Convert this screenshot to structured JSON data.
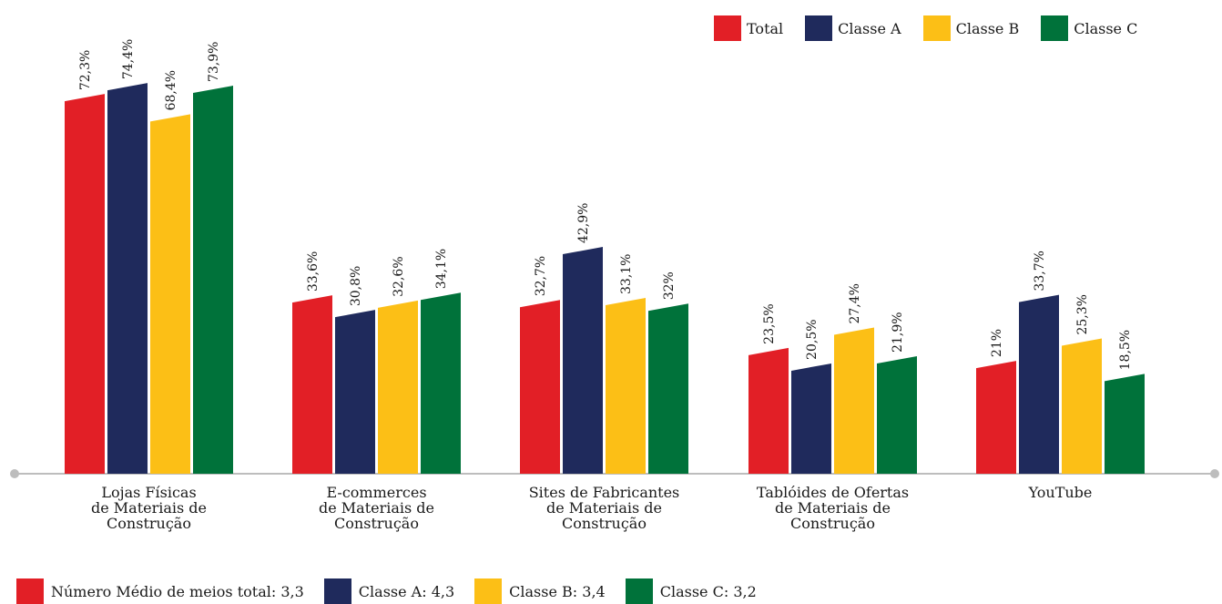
{
  "chart_data": {
    "type": "bar",
    "categories": [
      [
        "Lojas Físicas",
        "de Materiais de",
        "Construção"
      ],
      [
        "E-commerces",
        "de Materiais de",
        "Construção"
      ],
      [
        "Sites de Fabricantes",
        "de Materiais de",
        "Construção"
      ],
      [
        "Tablóides de Ofertas",
        "de Materiais de",
        "Construção"
      ],
      [
        "YouTube"
      ]
    ],
    "series": [
      {
        "name": "Total",
        "color": "#e21f26",
        "values": [
          72.3,
          33.6,
          32.7,
          23.5,
          21.0
        ],
        "labels": [
          "72,3%",
          "33,6%",
          "32,7%",
          "23,5%",
          "21%"
        ]
      },
      {
        "name": "Classe A",
        "color": "#1f2a5c",
        "values": [
          74.4,
          30.8,
          42.9,
          20.5,
          33.7
        ],
        "labels": [
          "74,4%",
          "30,8%",
          "42,9%",
          "20,5%",
          "33,7%"
        ]
      },
      {
        "name": "Classe B",
        "color": "#fcbf16",
        "values": [
          68.4,
          32.6,
          33.1,
          27.4,
          25.3
        ],
        "labels": [
          "68,4%",
          "32,6%",
          "33,1%",
          "27,4%",
          "25,3%"
        ]
      },
      {
        "name": "Classe C",
        "color": "#00723a",
        "values": [
          73.9,
          34.1,
          32.0,
          21.9,
          18.5
        ],
        "labels": [
          "73,9%",
          "34,1%",
          "32%",
          "21,9%",
          "18,5%"
        ]
      }
    ],
    "ylim": [
      0,
      80
    ],
    "grid": false,
    "legend_position": "top-right"
  },
  "legend": [
    {
      "label": "Total",
      "color": "#e21f26"
    },
    {
      "label": "Classe A",
      "color": "#1f2a5c"
    },
    {
      "label": "Classe B",
      "color": "#fcbf16"
    },
    {
      "label": "Classe C",
      "color": "#00723a"
    }
  ],
  "footer": [
    {
      "label": "Número Médio de meios total: 3,3",
      "color": "#e21f26"
    },
    {
      "label": "Classe A: 4,3",
      "color": "#1f2a5c"
    },
    {
      "label": "Classe B: 3,4",
      "color": "#fcbf16"
    },
    {
      "label": "Classe C: 3,2",
      "color": "#00723a"
    }
  ],
  "colors": {
    "axis": "#bdbdbd"
  }
}
